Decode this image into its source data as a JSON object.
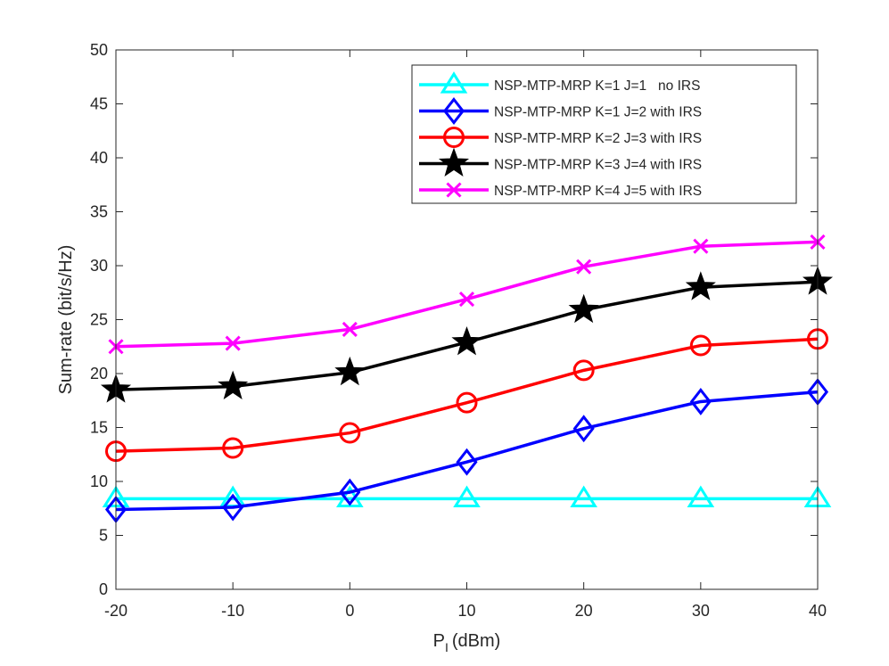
{
  "chart_data": {
    "type": "line",
    "title": "",
    "xlabel": "P",
    "xlabel_subscript": "I",
    "xlabel_unit": "(dBm)",
    "ylabel": "Sum-rate (bit/s/Hz)",
    "x": [
      -20,
      -10,
      0,
      10,
      20,
      30,
      40
    ],
    "xlim": [
      -20,
      40
    ],
    "ylim": [
      0,
      50
    ],
    "xticks": [
      -20,
      -10,
      0,
      10,
      20,
      30,
      40
    ],
    "yticks": [
      0,
      5,
      10,
      15,
      20,
      25,
      30,
      35,
      40,
      45,
      50
    ],
    "grid": false,
    "legend_position": "top-right",
    "series": [
      {
        "name": "NSP-MTP-MRP K=1 J=1   no IRS",
        "color": "#00ffff",
        "marker": "triangle",
        "values": [
          8.4,
          8.4,
          8.4,
          8.4,
          8.4,
          8.4,
          8.4
        ]
      },
      {
        "name": "NSP-MTP-MRP K=1 J=2 with IRS",
        "color": "#0000ff",
        "marker": "diamond",
        "values": [
          7.4,
          7.6,
          9.0,
          11.8,
          14.9,
          17.4,
          18.3
        ]
      },
      {
        "name": "NSP-MTP-MRP K=2 J=3 with IRS",
        "color": "#ff0000",
        "marker": "circle",
        "values": [
          12.8,
          13.1,
          14.5,
          17.3,
          20.3,
          22.6,
          23.2
        ]
      },
      {
        "name": "NSP-MTP-MRP K=3 J=4 with IRS",
        "color": "#000000",
        "marker": "star",
        "values": [
          18.5,
          18.8,
          20.1,
          22.9,
          25.9,
          28.0,
          28.5
        ]
      },
      {
        "name": "NSP-MTP-MRP K=4 J=5 with IRS",
        "color": "#ff00ff",
        "marker": "x",
        "values": [
          22.5,
          22.8,
          24.1,
          26.9,
          29.9,
          31.8,
          32.2
        ]
      }
    ]
  }
}
